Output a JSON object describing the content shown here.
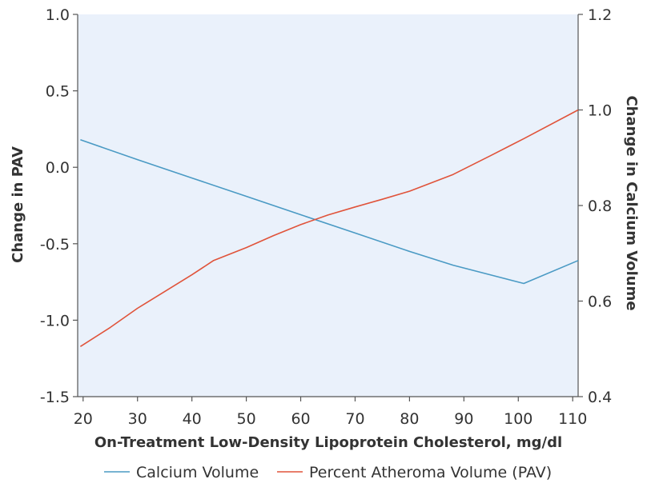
{
  "chart_data": {
    "type": "line",
    "title": "",
    "xlabel": "On-Treatment Low-Density Lipoprotein Cholesterol, mg/dl",
    "ylabel_left": "Change in PAV",
    "ylabel_right": "Change in Calcium Volume",
    "xlim": [
      19,
      111
    ],
    "ylim_left": [
      -1.5,
      1.0
    ],
    "ylim_right": [
      0.4,
      1.2
    ],
    "x_ticks": [
      20,
      30,
      40,
      50,
      60,
      70,
      80,
      90,
      100,
      110
    ],
    "y_left_ticks": [
      1.0,
      0.5,
      0.0,
      -0.5,
      -1.0,
      -1.5
    ],
    "y_left_tick_labels": [
      "1.0",
      "0.5",
      "0.0",
      "-0.5",
      "-1.0",
      "-1.5"
    ],
    "y_right_ticks": [
      1.2,
      1.0,
      0.8,
      0.6,
      0.4
    ],
    "y_right_tick_labels": [
      "1.2",
      "1.0",
      "0.8",
      "0.6",
      "0.4"
    ],
    "grid": false,
    "legend_position": "bottom",
    "plot_background": "#eaf1fb",
    "series": [
      {
        "name": "Calcium Volume",
        "axis": "left",
        "color": "#4a9ac4",
        "x": [
          19.5,
          30,
          40,
          50,
          60,
          70,
          80,
          88,
          101,
          111
        ],
        "y": [
          0.18,
          0.05,
          -0.07,
          -0.19,
          -0.31,
          -0.43,
          -0.55,
          -0.64,
          -0.76,
          -0.61
        ]
      },
      {
        "name": "Percent Atheroma Volume (PAV)",
        "axis": "right",
        "color": "#e0533a",
        "x": [
          19.5,
          25,
          30,
          35,
          40,
          44,
          50,
          55,
          60,
          65,
          70,
          75,
          80,
          88,
          95,
          101,
          111
        ],
        "y": [
          0.505,
          0.545,
          0.585,
          0.62,
          0.655,
          0.685,
          0.712,
          0.737,
          0.76,
          0.78,
          0.797,
          0.813,
          0.83,
          0.865,
          0.905,
          0.94,
          1.0
        ]
      }
    ]
  }
}
